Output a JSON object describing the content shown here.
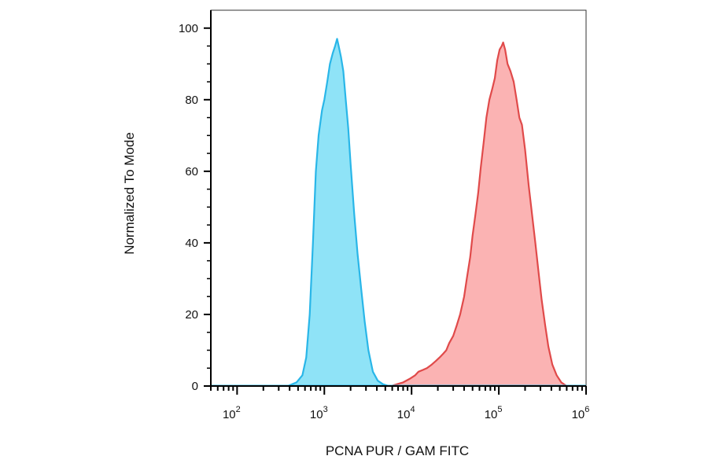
{
  "chart_data": {
    "type": "area",
    "title": "",
    "xlabel": "PCNA PUR / GAM FITC",
    "ylabel": "Normalized To Mode",
    "x_scale": "log",
    "xlim": [
      50,
      1000000
    ],
    "ylim": [
      0,
      105
    ],
    "x_ticks": [
      {
        "base": "10",
        "exp": "2",
        "value": 100
      },
      {
        "base": "10",
        "exp": "3",
        "value": 1000
      },
      {
        "base": "10",
        "exp": "4",
        "value": 10000
      },
      {
        "base": "10",
        "exp": "5",
        "value": 100000
      },
      {
        "base": "10",
        "exp": "6",
        "value": 1000000
      }
    ],
    "y_ticks": [
      "0",
      "20",
      "40",
      "60",
      "80",
      "100"
    ],
    "grid": false,
    "legend": "none",
    "series": [
      {
        "color": "#29b6e8",
        "fill": "#8fe3f7",
        "points": [
          [
            380,
            0
          ],
          [
            480,
            1
          ],
          [
            560,
            3
          ],
          [
            620,
            8
          ],
          [
            680,
            20
          ],
          [
            740,
            40
          ],
          [
            800,
            60
          ],
          [
            860,
            70
          ],
          [
            940,
            77
          ],
          [
            1000,
            80
          ],
          [
            1080,
            85
          ],
          [
            1160,
            90
          ],
          [
            1250,
            93
          ],
          [
            1330,
            95
          ],
          [
            1400,
            97
          ],
          [
            1460,
            95
          ],
          [
            1550,
            92
          ],
          [
            1650,
            88
          ],
          [
            1760,
            80
          ],
          [
            1880,
            72
          ],
          [
            2000,
            62
          ],
          [
            2200,
            48
          ],
          [
            2400,
            37
          ],
          [
            2650,
            27
          ],
          [
            2900,
            18
          ],
          [
            3200,
            10
          ],
          [
            3600,
            4
          ],
          [
            4100,
            1.5
          ],
          [
            4700,
            0.5
          ],
          [
            5500,
            0
          ]
        ]
      },
      {
        "color": "#e04a4a",
        "fill": "#fbb3b3",
        "points": [
          [
            5800,
            0
          ],
          [
            6800,
            0.5
          ],
          [
            8000,
            1
          ],
          [
            9500,
            2
          ],
          [
            11000,
            3
          ],
          [
            12000,
            4
          ],
          [
            13500,
            4.5
          ],
          [
            15000,
            5
          ],
          [
            17000,
            6
          ],
          [
            19000,
            7
          ],
          [
            21000,
            8
          ],
          [
            23000,
            9
          ],
          [
            25000,
            10
          ],
          [
            27000,
            12
          ],
          [
            30000,
            14
          ],
          [
            33000,
            17
          ],
          [
            36000,
            20
          ],
          [
            40000,
            25
          ],
          [
            43000,
            30
          ],
          [
            47000,
            36
          ],
          [
            50000,
            42
          ],
          [
            54000,
            48
          ],
          [
            58000,
            54
          ],
          [
            62000,
            61
          ],
          [
            67000,
            68
          ],
          [
            72000,
            75
          ],
          [
            78000,
            80
          ],
          [
            84000,
            83
          ],
          [
            90000,
            86
          ],
          [
            96000,
            91
          ],
          [
            102000,
            94
          ],
          [
            108000,
            95
          ],
          [
            112000,
            96
          ],
          [
            118000,
            94
          ],
          [
            126000,
            90
          ],
          [
            136000,
            88
          ],
          [
            148000,
            85
          ],
          [
            160000,
            80
          ],
          [
            172000,
            75
          ],
          [
            184000,
            73
          ],
          [
            200000,
            66
          ],
          [
            220000,
            56
          ],
          [
            240000,
            48
          ],
          [
            262000,
            40
          ],
          [
            285000,
            32
          ],
          [
            310000,
            24
          ],
          [
            340000,
            17
          ],
          [
            370000,
            11
          ],
          [
            410000,
            6
          ],
          [
            460000,
            3
          ],
          [
            520000,
            1
          ],
          [
            600000,
            0
          ]
        ]
      }
    ]
  }
}
